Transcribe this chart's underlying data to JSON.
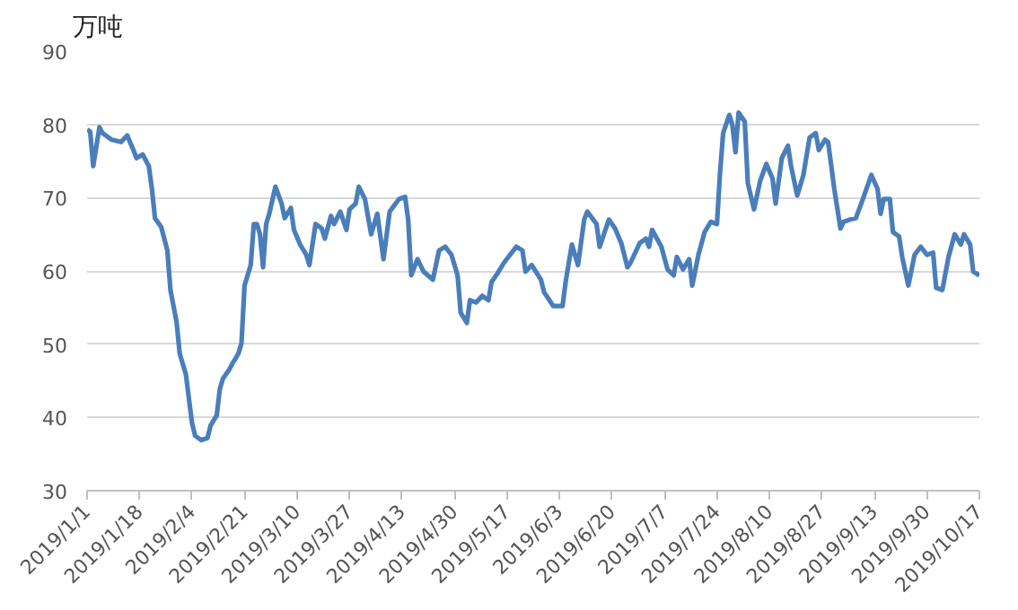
{
  "chart_data": {
    "type": "line",
    "ylabel": "万吨",
    "color": "#4a7ebb",
    "grid": "y",
    "marker": "none",
    "line_style": "solid",
    "ylim": [
      30,
      90
    ],
    "yticks": [
      30,
      40,
      50,
      60,
      70,
      80,
      90
    ],
    "xlim": [
      "2019-01-01",
      "2019-10-17"
    ],
    "xticks": [
      {
        "value": "2019-01-01",
        "label": "2019/1/1"
      },
      {
        "value": "2019-01-18",
        "label": "2019/1/18"
      },
      {
        "value": "2019-02-04",
        "label": "2019/2/4"
      },
      {
        "value": "2019-02-21",
        "label": "2019/2/21"
      },
      {
        "value": "2019-03-10",
        "label": "2019/3/10"
      },
      {
        "value": "2019-03-27",
        "label": "2019/3/27"
      },
      {
        "value": "2019-04-13",
        "label": "2019/4/13"
      },
      {
        "value": "2019-04-30",
        "label": "2019/4/30"
      },
      {
        "value": "2019-05-17",
        "label": "2019/5/17"
      },
      {
        "value": "2019-06-03",
        "label": "2019/6/3"
      },
      {
        "value": "2019-06-20",
        "label": "2019/6/20"
      },
      {
        "value": "2019-07-07",
        "label": "2019/7/7"
      },
      {
        "value": "2019-07-24",
        "label": "2019/7/24"
      },
      {
        "value": "2019-08-10",
        "label": "2019/8/10"
      },
      {
        "value": "2019-08-27",
        "label": "2019/8/27"
      },
      {
        "value": "2019-09-13",
        "label": "2019/9/13"
      },
      {
        "value": "2019-09-30",
        "label": "2019/9/30"
      },
      {
        "value": "2019-10-17",
        "label": "2019/10/17"
      }
    ],
    "x": [
      "2019-01-01",
      "2019-01-02",
      "2019-01-03",
      "2019-01-05",
      "2019-01-06",
      "2019-01-09",
      "2019-01-12",
      "2019-01-14",
      "2019-01-16",
      "2019-01-17",
      "2019-01-19",
      "2019-01-21",
      "2019-01-22",
      "2019-01-23",
      "2019-01-25",
      "2019-01-27",
      "2019-01-28",
      "2019-01-30",
      "2019-01-31",
      "2019-02-02",
      "2019-02-03",
      "2019-02-04",
      "2019-02-05",
      "2019-02-07",
      "2019-02-09",
      "2019-02-10",
      "2019-02-12",
      "2019-02-13",
      "2019-02-14",
      "2019-02-16",
      "2019-02-17",
      "2019-02-19",
      "2019-02-20",
      "2019-02-21",
      "2019-02-23",
      "2019-02-24",
      "2019-02-25",
      "2019-02-26",
      "2019-02-27",
      "2019-02-28",
      "2019-03-01",
      "2019-03-03",
      "2019-03-05",
      "2019-03-06",
      "2019-03-08",
      "2019-03-09",
      "2019-03-11",
      "2019-03-13",
      "2019-03-14",
      "2019-03-16",
      "2019-03-18",
      "2019-03-19",
      "2019-03-21",
      "2019-03-22",
      "2019-03-24",
      "2019-03-26",
      "2019-03-27",
      "2019-03-29",
      "2019-03-30",
      "2019-04-01",
      "2019-04-03",
      "2019-04-05",
      "2019-04-07",
      "2019-04-09",
      "2019-04-12",
      "2019-04-14",
      "2019-04-15",
      "2019-04-16",
      "2019-04-18",
      "2019-04-20",
      "2019-04-23",
      "2019-04-25",
      "2019-04-27",
      "2019-04-29",
      "2019-05-01",
      "2019-05-02",
      "2019-05-04",
      "2019-05-05",
      "2019-05-07",
      "2019-05-09",
      "2019-05-11",
      "2019-05-12",
      "2019-05-14",
      "2019-05-16",
      "2019-05-18",
      "2019-05-20",
      "2019-05-22",
      "2019-05-23",
      "2019-05-25",
      "2019-05-28",
      "2019-05-29",
      "2019-06-01",
      "2019-06-04",
      "2019-06-05",
      "2019-06-07",
      "2019-06-09",
      "2019-06-11",
      "2019-06-12",
      "2019-06-15",
      "2019-06-16",
      "2019-06-19",
      "2019-06-21",
      "2019-06-23",
      "2019-06-25",
      "2019-06-26",
      "2019-06-29",
      "2019-07-01",
      "2019-07-02",
      "2019-07-03",
      "2019-07-06",
      "2019-07-08",
      "2019-07-10",
      "2019-07-11",
      "2019-07-13",
      "2019-07-15",
      "2019-07-16",
      "2019-07-18",
      "2019-07-20",
      "2019-07-22",
      "2019-07-24",
      "2019-07-25",
      "2019-07-26",
      "2019-07-28",
      "2019-07-29",
      "2019-07-30",
      "2019-07-31",
      "2019-08-02",
      "2019-08-03",
      "2019-08-05",
      "2019-08-07",
      "2019-08-09",
      "2019-08-11",
      "2019-08-12",
      "2019-08-14",
      "2019-08-16",
      "2019-08-17",
      "2019-08-19",
      "2019-08-21",
      "2019-08-23",
      "2019-08-25",
      "2019-08-26",
      "2019-08-28",
      "2019-08-29",
      "2019-08-31",
      "2019-09-02",
      "2019-09-03",
      "2019-09-05",
      "2019-09-07",
      "2019-09-09",
      "2019-09-12",
      "2019-09-14",
      "2019-09-15",
      "2019-09-16",
      "2019-09-18",
      "2019-09-19",
      "2019-09-21",
      "2019-09-22",
      "2019-09-24",
      "2019-09-26",
      "2019-09-28",
      "2019-09-30",
      "2019-10-02",
      "2019-10-03",
      "2019-10-05",
      "2019-10-07",
      "2019-10-09",
      "2019-10-11",
      "2019-10-12",
      "2019-10-14",
      "2019-10-15",
      "2019-10-17"
    ],
    "values": [
      79.3,
      79,
      74.3,
      79.6,
      78.8,
      77.9,
      77.6,
      78.5,
      76.5,
      75.4,
      75.9,
      74.3,
      71.2,
      67.2,
      66,
      62.8,
      57.4,
      53,
      48.7,
      45.9,
      42.5,
      39.2,
      37.5,
      36.9,
      37.2,
      38.9,
      40.3,
      43.9,
      45.3,
      46.5,
      47.3,
      48.7,
      50.1,
      58,
      60.8,
      66.4,
      66.4,
      65,
      60.5,
      66.4,
      67.8,
      71.5,
      69.2,
      67.2,
      68.6,
      65.6,
      63.6,
      62.2,
      60.8,
      66.4,
      65.8,
      64.4,
      67.5,
      66.4,
      68.1,
      65.6,
      68.4,
      69.2,
      71.5,
      69.8,
      65,
      67.8,
      61.6,
      68.1,
      69.8,
      70.1,
      67,
      59.4,
      61.6,
      59.9,
      58.8,
      62.8,
      63.3,
      62.2,
      59.4,
      54.3,
      52.9,
      56,
      55.7,
      56.6,
      56,
      58.5,
      59.7,
      61.1,
      62.2,
      63.3,
      62.8,
      59.9,
      60.8,
      58.8,
      57.1,
      55.2,
      55.2,
      58.5,
      63.6,
      60.8,
      67,
      68.1,
      66.4,
      63.3,
      67,
      65.8,
      63.8,
      60.5,
      61.1,
      63.8,
      64.4,
      63.3,
      65.6,
      63.3,
      60.2,
      59.4,
      61.9,
      60.2,
      61.6,
      58,
      62.2,
      65.3,
      66.7,
      66.4,
      73.4,
      78.8,
      81.3,
      79.9,
      76.2,
      81.6,
      80.4,
      72,
      68.4,
      72.3,
      74.6,
      72.6,
      69.2,
      75.4,
      77.1,
      74.3,
      70.3,
      73.1,
      78.2,
      78.8,
      76.5,
      77.9,
      77.6,
      71.2,
      65.8,
      66.7,
      67,
      67.2,
      69.5,
      73.1,
      71.2,
      67.8,
      69.8,
      69.8,
      65.3,
      64.7,
      61.9,
      58,
      62.2,
      63.3,
      62.2,
      62.5,
      57.7,
      57.4,
      61.9,
      65,
      63.6,
      65,
      63.6,
      59.9,
      59.4
    ]
  }
}
